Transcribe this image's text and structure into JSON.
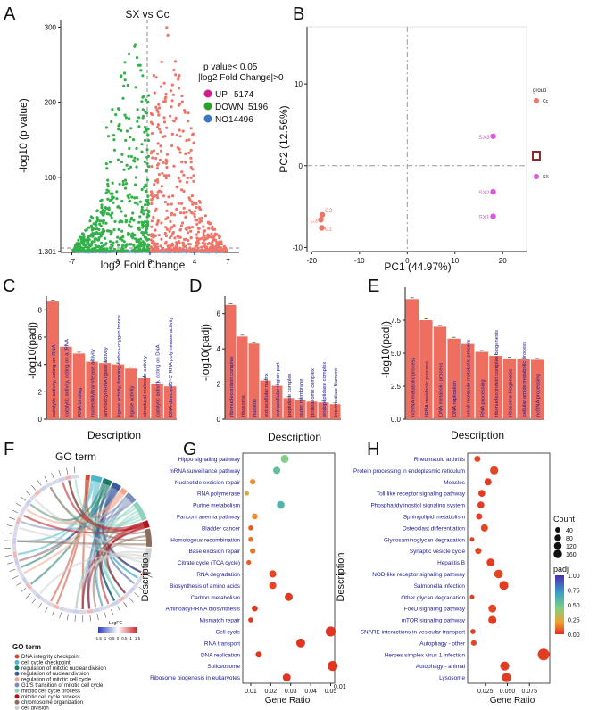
{
  "panel_letters": [
    "A",
    "B",
    "C",
    "D",
    "E",
    "F",
    "G",
    "H"
  ],
  "chart_data": [
    {
      "id": "A",
      "type": "scatter",
      "title": "SX vs Cc",
      "xlabel": "log2 Fold Change",
      "ylabel": "-log10 (p value)",
      "xlim": [
        -8,
        8
      ],
      "ylim": [
        0,
        310
      ],
      "xticks": [
        "-7",
        "-3",
        "0",
        "4",
        "7"
      ],
      "xtick_values": [
        -7,
        -3,
        0,
        4,
        7
      ],
      "yticks": [
        "1.301",
        "100",
        "200",
        "300"
      ],
      "ytick_values": [
        1.301,
        100,
        200,
        300
      ],
      "annotation": [
        "p value< 0.05",
        "|log2 Fold Change|>0"
      ],
      "legend": [
        {
          "label": "UP",
          "count": "5174",
          "color": "#d81b8c"
        },
        {
          "label": "DOWN",
          "count": "5196",
          "color": "#2ca02c"
        },
        {
          "label": "NO",
          "count": "14496",
          "color": "#3a78c2"
        }
      ],
      "point_colors": {
        "up": "#f07468",
        "down": "#33b04a",
        "no": "#7b9ee0"
      },
      "counts": {
        "up": 5174,
        "down": 5196,
        "no": 14496
      }
    },
    {
      "id": "B",
      "type": "scatter",
      "xlabel": "PC1 (44.97%)",
      "ylabel": "PC2 (12.56%)",
      "xlim": [
        -21,
        25
      ],
      "ylim": [
        -10.5,
        17
      ],
      "xticks": [
        "-20",
        "-10",
        "0",
        "10",
        "20"
      ],
      "xtick_values": [
        -20,
        -10,
        0,
        10,
        20
      ],
      "yticks": [
        "-10",
        "0",
        "10"
      ],
      "ytick_values": [
        -10,
        0,
        10
      ],
      "legend_title": "group",
      "legend": [
        {
          "label": "Cc",
          "color": "#f07468"
        },
        {
          "label": "SX",
          "color": "#d85ad8"
        }
      ],
      "points": [
        {
          "label": "C2",
          "x": -17.8,
          "y": -6.0,
          "group": "Cc"
        },
        {
          "label": "C3",
          "x": -18.1,
          "y": -6.6,
          "group": "Cc"
        },
        {
          "label": "C1",
          "x": -17.9,
          "y": -7.6,
          "group": "Cc"
        },
        {
          "label": "SX3",
          "x": 18.0,
          "y": 3.6,
          "group": "SX"
        },
        {
          "label": "SX2",
          "x": 18.0,
          "y": -3.2,
          "group": "SX"
        },
        {
          "label": "SX1",
          "x": 18.0,
          "y": -6.2,
          "group": "SX"
        }
      ]
    },
    {
      "id": "C",
      "type": "bar",
      "xlabel": "Description",
      "ylabel": "-log10(padj)",
      "ylim": [
        0,
        9
      ],
      "yticks": [
        "0",
        "2",
        "4",
        "6",
        "8"
      ],
      "ytick_values": [
        0,
        2,
        4,
        6,
        8
      ],
      "color": "#ee6f60",
      "categories": [
        "catalytic activity, acting on RNA",
        "catalytic activity, acting on a tRNA",
        "RNA binding",
        "nucleotidyltransferase activity",
        "aminoacyl-tRNA ligase activity",
        "ligase activity, forming carbon-oxygen bonds",
        "ligase activity",
        "structural molecule activity",
        "catalytic activity, acting on DNA",
        "DNA-directed 5'-3' RNA polymerase activity"
      ],
      "values": [
        8.6,
        5.3,
        4.8,
        4.2,
        4.1,
        4.0,
        3.7,
        3.0,
        2.6,
        2.4
      ]
    },
    {
      "id": "D",
      "type": "bar",
      "xlabel": "Description",
      "ylabel": "-log10(padj)",
      "ylim": [
        0,
        7
      ],
      "yticks": [
        "0",
        "2",
        "4",
        "6"
      ],
      "ytick_values": [
        0,
        2,
        4,
        6
      ],
      "color": "#ee6f60",
      "categories": [
        "ribonucleoprotein complex",
        "ribosome",
        "nucleus",
        "extracellular matrix",
        "extracellular region part",
        "peptidase complex",
        "outer membrane",
        "proteasome complex",
        "endopeptidase complex",
        "intermediate filament"
      ],
      "values": [
        6.5,
        4.7,
        4.3,
        2.2,
        1.9,
        1.2,
        1.1,
        1.0,
        0.95,
        0.85
      ]
    },
    {
      "id": "E",
      "type": "bar",
      "xlabel": "Description",
      "ylabel": "-log10(padj)",
      "ylim": [
        0,
        10
      ],
      "yticks": [
        "0.0",
        "2.5",
        "5.0",
        "7.5"
      ],
      "ytick_values": [
        0,
        2.5,
        5,
        7.5
      ],
      "color": "#ee6f60",
      "categories": [
        "ncRNA metabolic process",
        "tRNA metabolic process",
        "DNA metabolic process",
        "DNA replication",
        "small molecule metabolic process",
        "RNA processing",
        "ribonucleoprotein complex biogenesis",
        "ribosome biogenesis",
        "cellular amide metabolic process",
        "ncRNA processing"
      ],
      "values": [
        9.1,
        7.5,
        7.0,
        6.1,
        5.7,
        5.1,
        4.8,
        4.6,
        4.55,
        4.5
      ]
    },
    {
      "id": "F",
      "type": "chord",
      "title": "GO term",
      "legend_title": "GO term",
      "colorbar_label": "LogFC",
      "colorbar_ticks": [
        "-1.5",
        "-1",
        "-0.5",
        "0",
        "0.5",
        "1",
        "1.5"
      ],
      "terms": [
        {
          "label": "DNA integrity checkpoint",
          "color": "#cf4a2f"
        },
        {
          "label": "cell cycle checkpoint",
          "color": "#4db6c9"
        },
        {
          "label": "regulation of mitotic nuclear division",
          "color": "#1a7a6a"
        },
        {
          "label": "regulation of nuclear division",
          "color": "#3b5a9a"
        },
        {
          "label": "regulation of mitotic cell cycle",
          "color": "#f2a88f"
        },
        {
          "label": "G1/S transition of mitotic cell cycle",
          "color": "#7b8fb8"
        },
        {
          "label": "mitotic cell cycle process",
          "color": "#8dd3c0"
        },
        {
          "label": "mitotic cell cycle process",
          "color": "#b5121b"
        },
        {
          "label": "chromosome organization",
          "color": "#8a6d5a"
        },
        {
          "label": "cell division",
          "color": "#cfcfcf"
        }
      ]
    },
    {
      "id": "G",
      "type": "dot",
      "xlabel": "Gene Ratio",
      "ylabel": "Description",
      "xlim": [
        0.006,
        0.052
      ],
      "xticks": [
        "0.01",
        "0.02",
        "0.03",
        "0.04",
        "0.05"
      ],
      "xtick_values": [
        0.01,
        0.02,
        0.03,
        0.04,
        0.05
      ],
      "extra_tick": "0.01",
      "categories": [
        "Hippo signaling pathway",
        "mRNA surveillance pathway",
        "Nucleotide excision repair",
        "RNA polymerase",
        "Purine metabolism",
        "Fanconi anemia pathway",
        "Bladder cancer",
        "Homologous recombination",
        "Base excision repair",
        "Citrate cycle (TCA cycle)",
        "RNA degradation",
        "Biosynthesis of amino acids",
        "Carbon metabolism",
        "Aminoacyl-tRNA biosynthesis",
        "Mismatch repair",
        "Cell cycle",
        "RNA transport",
        "DNA replication",
        "Spliceosome",
        "Ribosome biogenesis in eukaryotes"
      ],
      "gene_ratio": [
        0.027,
        0.023,
        0.011,
        0.008,
        0.025,
        0.012,
        0.01,
        0.01,
        0.011,
        0.009,
        0.021,
        0.021,
        0.029,
        0.012,
        0.01,
        0.05,
        0.035,
        0.014,
        0.051,
        0.028
      ],
      "count": [
        60,
        45,
        20,
        10,
        55,
        25,
        15,
        15,
        20,
        12,
        45,
        45,
        60,
        25,
        15,
        110,
        80,
        30,
        110,
        60
      ],
      "padj": [
        0.5,
        0.6,
        0.2,
        0.3,
        0.65,
        0.2,
        0.1,
        0.15,
        0.15,
        0.1,
        0.05,
        0.05,
        0.02,
        0.02,
        0.02,
        0.01,
        0.01,
        0.02,
        0.01,
        0.01
      ]
    },
    {
      "id": "H",
      "type": "dot",
      "xlabel": "Gene Ratio",
      "ylabel": "Description",
      "xlim": [
        0.005,
        0.098
      ],
      "xticks": [
        "0.025",
        "0.050",
        "0.075"
      ],
      "xtick_values": [
        0.025,
        0.05,
        0.075
      ],
      "categories": [
        "Rheumatoid arthritis",
        "Protein processing in endoplasmic reticulum",
        "Measles",
        "Toll-like receptor signaling pathway",
        "Phosphatidylinositol signaling system",
        "Sphingolipid metabolism",
        "Osteoclast differentiation",
        "Glycosaminoglycan degradation",
        "Synaptic vesicle cycle",
        "Hepatitis B",
        "NOD-like receptor signaling pathway",
        "Salmonella infection",
        "Other glycan degradation",
        "FoxO signaling pathway",
        "mTOR signaling pathway",
        "SNARE interactions in vesicular transport",
        "Autophagy - other",
        "Herpes simplex virus 1 infection",
        "Autophagy - animal",
        "Lysosome"
      ],
      "gene_ratio": [
        0.016,
        0.035,
        0.028,
        0.021,
        0.02,
        0.018,
        0.024,
        0.01,
        0.017,
        0.031,
        0.04,
        0.046,
        0.01,
        0.033,
        0.033,
        0.011,
        0.012,
        0.091,
        0.047,
        0.049
      ],
      "count": [
        30,
        65,
        45,
        40,
        40,
        30,
        45,
        10,
        30,
        60,
        75,
        85,
        10,
        60,
        65,
        15,
        20,
        160,
        85,
        90
      ],
      "padj": [
        0.05,
        0.05,
        0.03,
        0.03,
        0.03,
        0.03,
        0.05,
        0.03,
        0.05,
        0.03,
        0.05,
        0.03,
        0.03,
        0.05,
        0.03,
        0.03,
        0.05,
        0.03,
        0.03,
        0.03
      ],
      "size_legend_title": "Count",
      "size_legend": [
        "40",
        "80",
        "120",
        "160"
      ],
      "color_legend_title": "padj",
      "color_legend": [
        "1.00",
        "0.75",
        "0.50",
        "0.25",
        "0.00"
      ]
    }
  ]
}
